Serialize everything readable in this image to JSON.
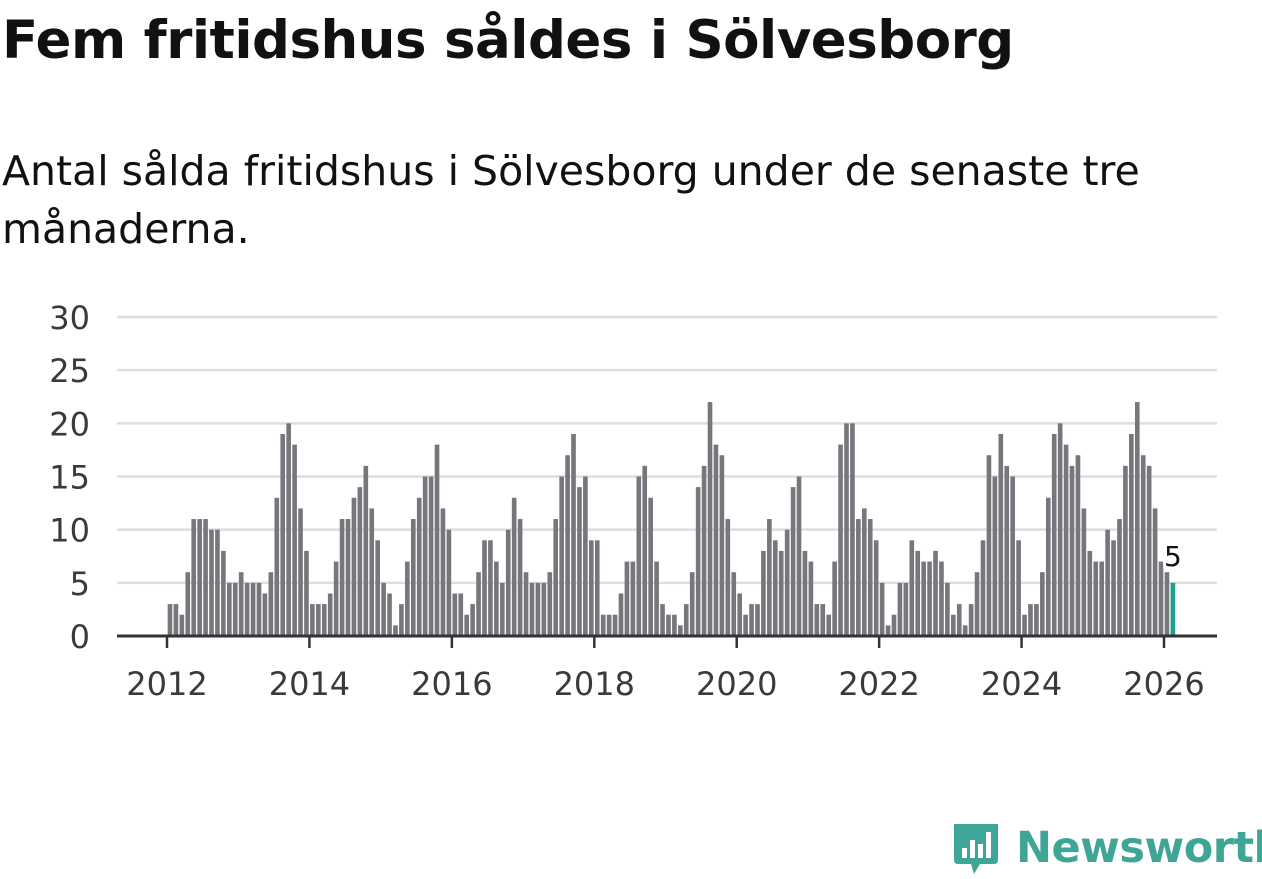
{
  "chart_data": {
    "type": "bar",
    "title": "Fem fritidshus såldes i Sölvesborg",
    "subtitle": "Antal sålda fritidshus i Sölvesborg under de senaste tre månaderna.",
    "x_start": "2012-01",
    "x_ticks": [
      "2012",
      "2014",
      "2016",
      "2018",
      "2020",
      "2022",
      "2024",
      "2026"
    ],
    "y_ticks": [
      0,
      5,
      10,
      15,
      20,
      25,
      30
    ],
    "ylim": [
      0,
      30
    ],
    "values": [
      3,
      3,
      2,
      6,
      11,
      11,
      11,
      10,
      10,
      8,
      5,
      5,
      6,
      5,
      5,
      5,
      4,
      6,
      13,
      19,
      20,
      18,
      12,
      8,
      3,
      3,
      3,
      4,
      7,
      11,
      11,
      13,
      14,
      16,
      12,
      9,
      5,
      4,
      1,
      3,
      7,
      11,
      13,
      15,
      15,
      18,
      12,
      10,
      4,
      4,
      2,
      3,
      6,
      9,
      9,
      7,
      5,
      10,
      13,
      11,
      6,
      5,
      5,
      5,
      6,
      11,
      15,
      17,
      19,
      14,
      15,
      9,
      9,
      2,
      2,
      2,
      4,
      7,
      7,
      15,
      16,
      13,
      7,
      3,
      2,
      2,
      1,
      3,
      6,
      14,
      16,
      22,
      18,
      17,
      11,
      6,
      4,
      2,
      3,
      3,
      8,
      11,
      9,
      8,
      10,
      14,
      15,
      8,
      7,
      3,
      3,
      2,
      7,
      18,
      20,
      20,
      11,
      12,
      11,
      9,
      5,
      1,
      2,
      5,
      5,
      9,
      8,
      7,
      7,
      8,
      7,
      5,
      2,
      3,
      1,
      3,
      6,
      9,
      17,
      15,
      19,
      16,
      15,
      9,
      2,
      3,
      3,
      6,
      13,
      19,
      20,
      18,
      16,
      17,
      12,
      8,
      7,
      7,
      10,
      9,
      11,
      16,
      19,
      22,
      17,
      16,
      12,
      7,
      6,
      5
    ],
    "last_value_label": "5",
    "colors": {
      "bar": "#77767c",
      "highlight": "#1e9e8e",
      "grid": "#dedede",
      "axis": "#333333"
    }
  },
  "brand": {
    "name": "Newsworthy",
    "color": "#3fa596",
    "icon": "bar-chart-bubble-icon"
  }
}
